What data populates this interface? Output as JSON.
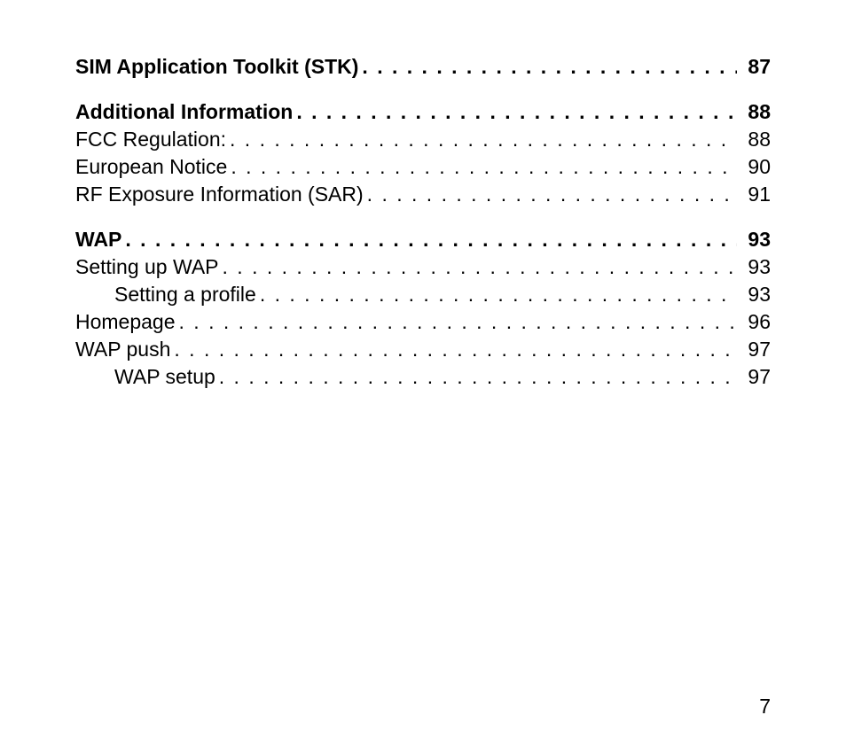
{
  "sections": [
    {
      "entries": [
        {
          "title": "SIM Application Toolkit (STK)",
          "page": "87",
          "bold": true,
          "indent": 0
        }
      ]
    },
    {
      "entries": [
        {
          "title": "Additional Information",
          "page": "88",
          "bold": true,
          "indent": 0
        },
        {
          "title": "FCC Regulation:",
          "page": "88",
          "bold": false,
          "indent": 0
        },
        {
          "title": "European Notice",
          "page": "90",
          "bold": false,
          "indent": 0
        },
        {
          "title": "RF Exposure Information (SAR)",
          "page": "91",
          "bold": false,
          "indent": 0
        }
      ]
    },
    {
      "entries": [
        {
          "title": "WAP",
          "page": "93",
          "bold": true,
          "indent": 0
        },
        {
          "title": "Setting up WAP",
          "page": "93",
          "bold": false,
          "indent": 0
        },
        {
          "title": "Setting a profile",
          "page": "93",
          "bold": false,
          "indent": 1
        },
        {
          "title": "Homepage",
          "page": "96",
          "bold": false,
          "indent": 0
        },
        {
          "title": "WAP push",
          "page": "97",
          "bold": false,
          "indent": 0
        },
        {
          "title": "WAP setup",
          "page": "97",
          "bold": false,
          "indent": 1
        }
      ]
    }
  ],
  "pageNumber": "7",
  "leaderDots": " . . . . . . . . . . . . . . . . . . . . . . . . . . . . . . . . . . . . . . . . . . . . . . . . . . . . . . . . . . . . . . . . . . . . . . . . . . . . . ."
}
